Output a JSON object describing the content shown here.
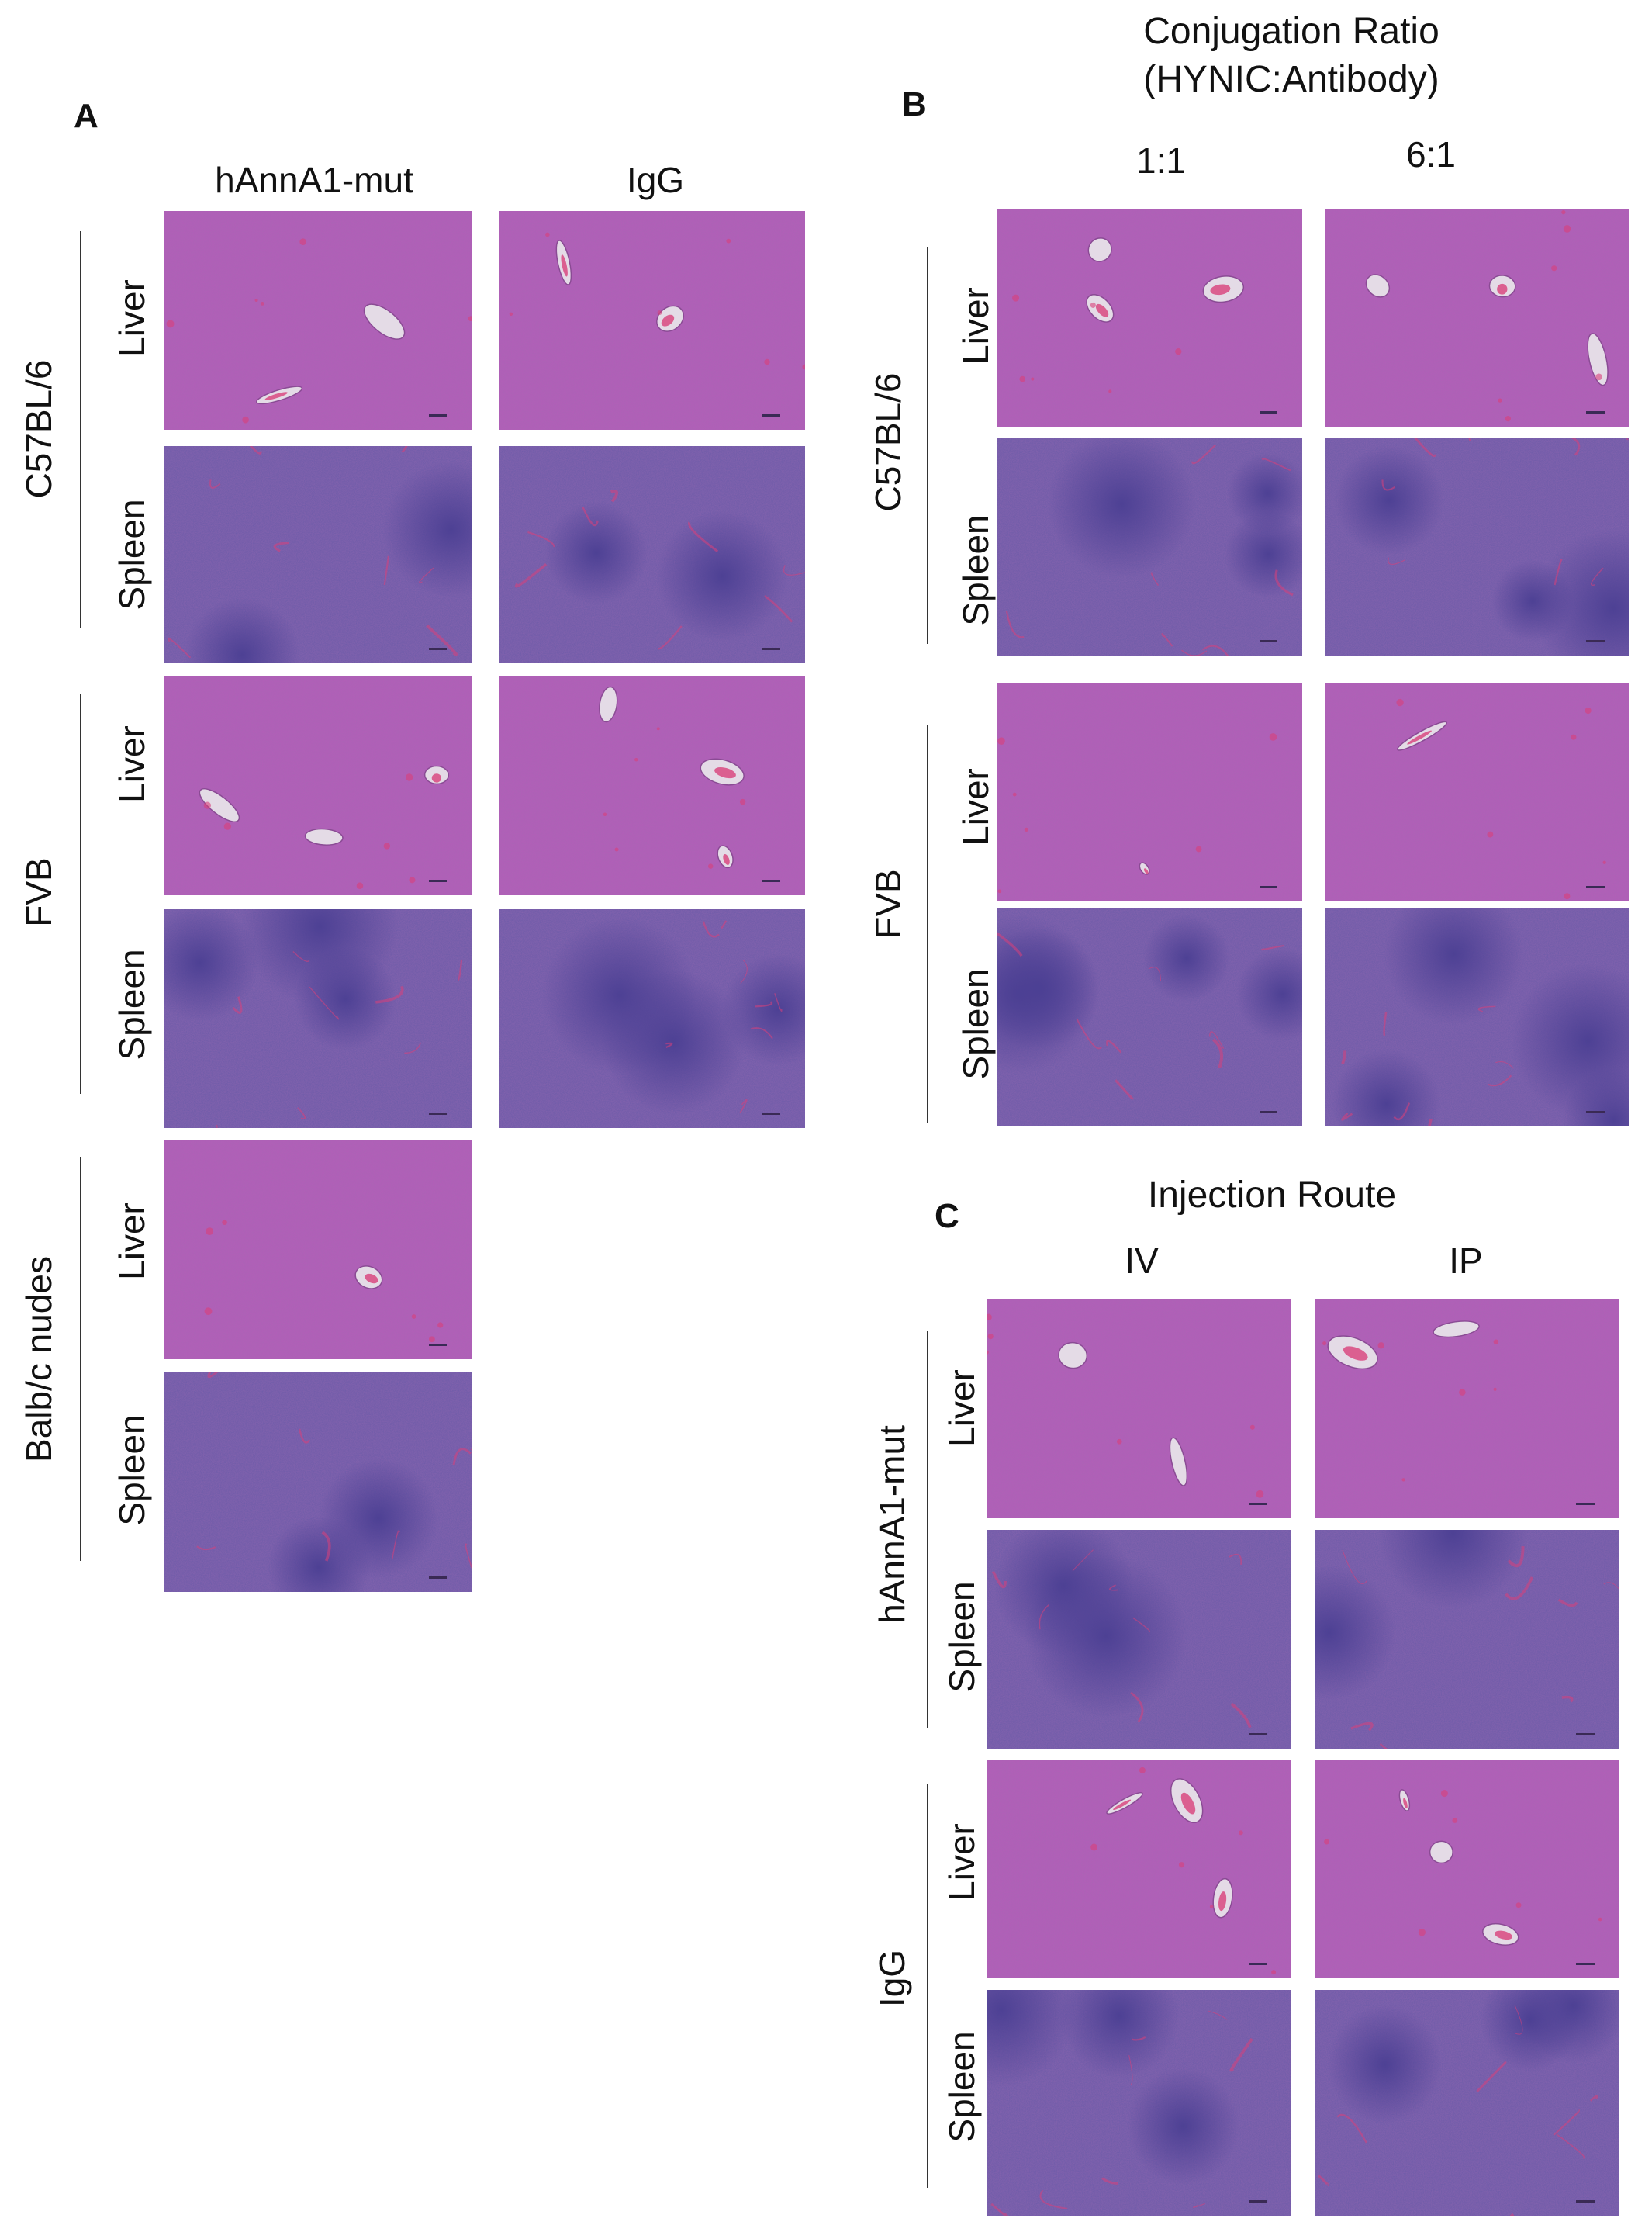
{
  "panels": {
    "a": {
      "letter": "A",
      "columns": [
        "hAnnA1-mut",
        "IgG"
      ],
      "strains": [
        "C57BL/6",
        "FVB",
        "Balb/c nudes"
      ],
      "organs": [
        "Liver",
        "Spleen"
      ]
    },
    "b": {
      "letter": "B",
      "title_line1": "Conjugation Ratio",
      "title_line2": "(HYNIC:Antibody)",
      "columns": [
        "1:1",
        "6:1"
      ],
      "strains": [
        "C57BL/6",
        "FVB"
      ],
      "organs": [
        "Liver",
        "Spleen"
      ]
    },
    "c": {
      "letter": "C",
      "title": "Injection Route",
      "columns": [
        "IV",
        "IP"
      ],
      "groups": [
        "hAnnA1-mut",
        "IgG"
      ],
      "organs": [
        "Liver",
        "Spleen"
      ]
    }
  },
  "colors": {
    "liver_base": "#b45cb8",
    "spleen_base": "#6a5aa8",
    "spleen_follicle": "#4b3f93",
    "vessel": "#e4dbe6",
    "blood": "#d8407a"
  }
}
